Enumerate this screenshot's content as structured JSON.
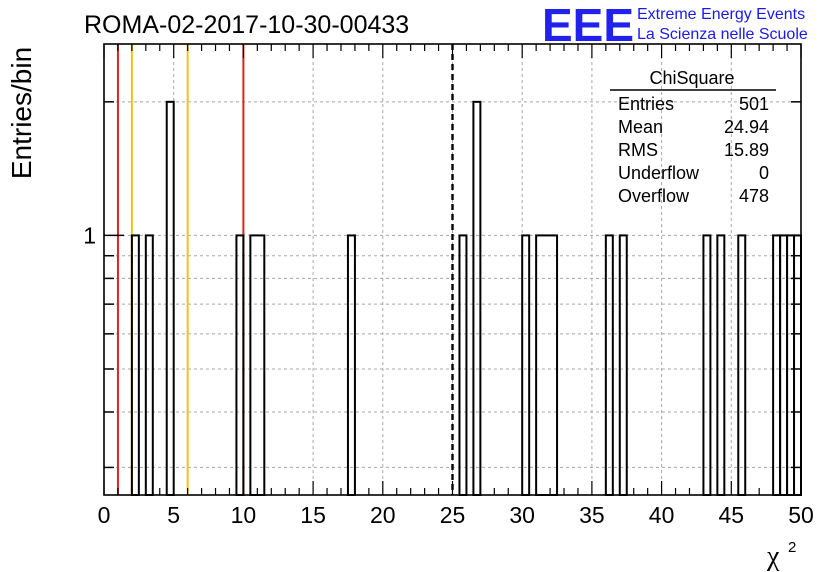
{
  "chart_data": {
    "type": "histogram",
    "title": "ROMA-02-2017-10-30-00433",
    "xlabel": "χ²",
    "ylabel": "Entries/bin",
    "xlim": [
      0,
      50
    ],
    "ylim": [
      0.26,
      2.7
    ],
    "y_scale": "log",
    "grid": true,
    "x_ticks": [
      0,
      5,
      10,
      15,
      20,
      25,
      30,
      35,
      40,
      45,
      50
    ],
    "y_tick_labels": [
      "1"
    ],
    "bins": [
      {
        "x0": 2,
        "x1": 2.5,
        "value": 1
      },
      {
        "x0": 3,
        "x1": 3.5,
        "value": 1
      },
      {
        "x0": 4.5,
        "x1": 5,
        "value": 2
      },
      {
        "x0": 9.5,
        "x1": 10,
        "value": 1
      },
      {
        "x0": 10.5,
        "x1": 11.5,
        "value": 1
      },
      {
        "x0": 17.5,
        "x1": 18,
        "value": 1
      },
      {
        "x0": 25.5,
        "x1": 26,
        "value": 1
      },
      {
        "x0": 26.5,
        "x1": 27,
        "value": 2
      },
      {
        "x0": 30,
        "x1": 30.5,
        "value": 1
      },
      {
        "x0": 31,
        "x1": 32.5,
        "value": 1
      },
      {
        "x0": 36,
        "x1": 36.5,
        "value": 1
      },
      {
        "x0": 37,
        "x1": 37.5,
        "value": 1
      },
      {
        "x0": 43,
        "x1": 43.5,
        "value": 1
      },
      {
        "x0": 44,
        "x1": 44.5,
        "value": 1
      },
      {
        "x0": 45.5,
        "x1": 46,
        "value": 1
      },
      {
        "x0": 48,
        "x1": 48.5,
        "value": 1
      },
      {
        "x0": 48.5,
        "x1": 49,
        "value": 1
      },
      {
        "x0": 49,
        "x1": 49.5,
        "value": 1
      },
      {
        "x0": 49.5,
        "x1": 50,
        "value": 1
      }
    ],
    "reference_lines": [
      {
        "x": 1,
        "color": "#dd2222",
        "style": "solid"
      },
      {
        "x": 2,
        "color": "#f0c020",
        "style": "solid"
      },
      {
        "x": 6,
        "color": "#f0c020",
        "style": "solid"
      },
      {
        "x": 10,
        "color": "#dd2222",
        "style": "solid"
      },
      {
        "x": 25,
        "color": "#000000",
        "style": "dashed"
      }
    ],
    "stats_box": {
      "title": "ChiSquare",
      "rows": [
        {
          "label": "Entries",
          "value": "501"
        },
        {
          "label": "Mean",
          "value": "24.94"
        },
        {
          "label": "RMS",
          "value": "15.89"
        },
        {
          "label": "Underflow",
          "value": "0"
        },
        {
          "label": "Overflow",
          "value": "478"
        }
      ]
    }
  },
  "logo": {
    "text": "EEE",
    "line1": "Extreme Energy Events",
    "line2": "La Scienza nelle Scuole",
    "color": "#2222ee"
  }
}
